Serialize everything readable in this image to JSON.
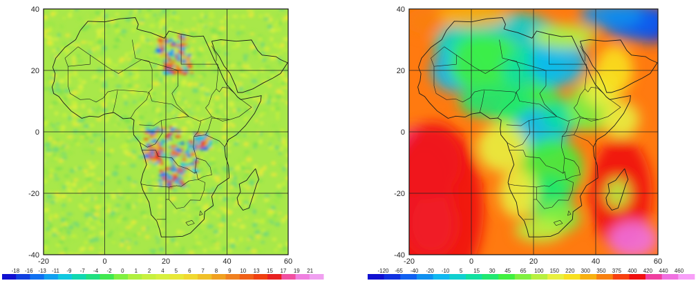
{
  "maps": [
    {
      "x_ticks": [
        "-20",
        "0",
        "20",
        "40",
        "60"
      ],
      "y_ticks": [
        "40",
        "20",
        "0",
        "-20",
        "-40"
      ],
      "lon_range": [
        -20,
        60
      ],
      "lat_range": [
        -40,
        40
      ],
      "colorbar_labels": [
        "-18",
        "-16",
        "-13",
        "-11",
        "-9",
        "-7",
        "-4",
        "-2",
        "0",
        "1",
        "2",
        "4",
        "5",
        "6",
        "7",
        "8",
        "9",
        "10",
        "13",
        "15",
        "17",
        "19",
        "21"
      ],
      "colorbar_colors": [
        "#1010d0",
        "#1040e0",
        "#1070f0",
        "#10a0f0",
        "#10c8e0",
        "#10d8b0",
        "#20e080",
        "#40e850",
        "#80f040",
        "#b0f040",
        "#c8f040",
        "#d8f040",
        "#e8e838",
        "#f0d830",
        "#f0c028",
        "#f0a020",
        "#f08020",
        "#f06018",
        "#f04010",
        "#e82020",
        "#f050a0",
        "#f080e0",
        "#f0a0f0"
      ],
      "background_color": "#a8e84a"
    },
    {
      "x_ticks": [
        "-20",
        "0",
        "20",
        "40",
        "60"
      ],
      "y_ticks": [
        "40",
        "20",
        "0",
        "-20",
        "-40"
      ],
      "lon_range": [
        -20,
        60
      ],
      "lat_range": [
        -40,
        40
      ],
      "colorbar_labels": [
        "-120",
        "-65",
        "-40",
        "-20",
        "-10",
        "5",
        "15",
        "30",
        "45",
        "65",
        "100",
        "150",
        "220",
        "300",
        "350",
        "375",
        "400",
        "420",
        "440",
        "460"
      ],
      "colorbar_colors": [
        "#1010d0",
        "#1030e0",
        "#1060f0",
        "#1090f0",
        "#10b8f0",
        "#10d0d0",
        "#10e0a0",
        "#20e870",
        "#40f040",
        "#80f040",
        "#b8f040",
        "#e8f040",
        "#f8e020",
        "#f8b010",
        "#f88010",
        "#f84010",
        "#f01010",
        "#f040a0",
        "#f070e0",
        "#f8a0f8"
      ],
      "background_color": "#ff7a10"
    }
  ]
}
